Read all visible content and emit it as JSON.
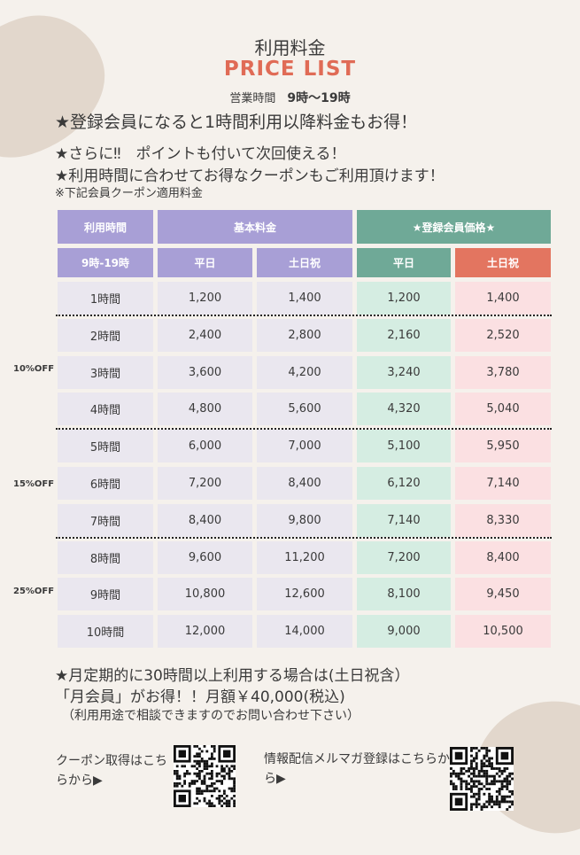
{
  "header": {
    "title_jp": "利用料金",
    "title_en": "PRICE LIST",
    "hours_label": "営業時間",
    "hours_value": "9時〜19時"
  },
  "promos": {
    "line1": "★登録会員になると1時間利用以降料金もお得！",
    "line2": "★さらに‼　ポイントも付いて次回使える！",
    "line3": "★利用時間に合わせてお得なクーポンもご利用頂けます！",
    "note": "※下記会員クーポン適用料金"
  },
  "table": {
    "col_time": "利用時間",
    "col_basic": "基本料金",
    "col_member": "★登録会員価格★",
    "sub_time": "9時-19時",
    "sub_weekday": "平日",
    "sub_weekend": "土日祝",
    "sub_m_weekday": "平日",
    "sub_m_weekend": "土日祝",
    "rows": [
      [
        "1時間",
        "1,200",
        "1,400",
        "1,200",
        "1,400"
      ],
      [
        "2時間",
        "2,400",
        "2,800",
        "2,160",
        "2,520"
      ],
      [
        "3時間",
        "3,600",
        "4,200",
        "3,240",
        "3,780"
      ],
      [
        "4時間",
        "4,800",
        "5,600",
        "4,320",
        "5,040"
      ],
      [
        "5時間",
        "6,000",
        "7,000",
        "5,100",
        "5,950"
      ],
      [
        "6時間",
        "7,200",
        "8,400",
        "6,120",
        "7,140"
      ],
      [
        "7時間",
        "8,400",
        "9,800",
        "7,140",
        "8,330"
      ],
      [
        "8時間",
        "9,600",
        "11,200",
        "7,200",
        "8,400"
      ],
      [
        "9時間",
        "10,800",
        "12,600",
        "8,100",
        "9,450"
      ],
      [
        "10時間",
        "12,000",
        "14,000",
        "9,000",
        "10,500"
      ]
    ],
    "discounts": [
      "10%OFF",
      "15%OFF",
      "25%OFF"
    ]
  },
  "footer": {
    "line1": "★月定期的に30時間以上利用する場合は(土日祝含）",
    "line2": "「月会員」がお得！！月額￥40,000(税込)",
    "line3": "（利用用途で相談できますのでお問い合わせ下さい）",
    "coupon_label": "クーポン取得はこちらから▶",
    "newsletter_label": "情報配信メルマガ登録はこちらから▶"
  },
  "colors": {
    "accent": "#e06b56",
    "header_purple": "#a89fd6",
    "header_green": "#6fa997",
    "header_coral": "#e37560",
    "cell_gray": "#eae7ef",
    "cell_mint": "#d5ede2",
    "cell_pink": "#fbe0e2",
    "background": "#f5f1ec"
  }
}
